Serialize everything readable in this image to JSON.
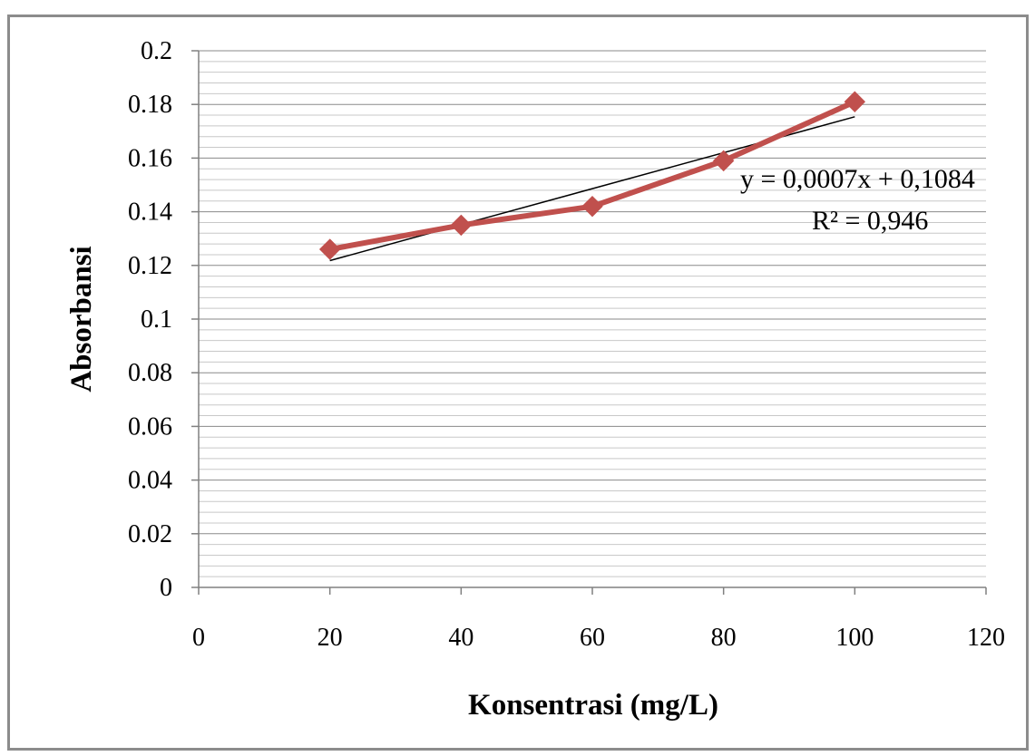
{
  "chart_data": {
    "type": "line",
    "x": [
      20,
      40,
      60,
      80,
      100
    ],
    "series": [
      {
        "values": [
          0.126,
          0.135,
          0.142,
          0.159,
          0.181
        ],
        "color": "#c0504d",
        "marker": "diamond"
      }
    ],
    "trendline": {
      "type": "linear",
      "x_range": [
        20,
        100
      ],
      "equation": "y = 0,0007x + 0,1084",
      "r_squared": "R² = 0,946",
      "color": "#000000"
    },
    "xlabel": "Konsentrasi (mg/L)",
    "ylabel": "Absorbansi",
    "xlim": [
      0,
      120
    ],
    "ylim": [
      0,
      0.2
    ],
    "x_ticks": [
      0,
      20,
      40,
      60,
      80,
      100,
      120
    ],
    "x_tick_labels": [
      "0",
      "20",
      "40",
      "60",
      "80",
      "100",
      "120"
    ],
    "y_ticks": [
      0,
      0.02,
      0.04,
      0.06,
      0.08,
      0.1,
      0.12,
      0.14,
      0.16,
      0.18,
      0.2
    ],
    "y_tick_labels": [
      "0",
      "0.02",
      "0.04",
      "0.06",
      "0.08",
      "0.1",
      "0.12",
      "0.14",
      "0.16",
      "0.18",
      "0.2"
    ],
    "grid": "major and minor horizontal",
    "legend": "none"
  }
}
